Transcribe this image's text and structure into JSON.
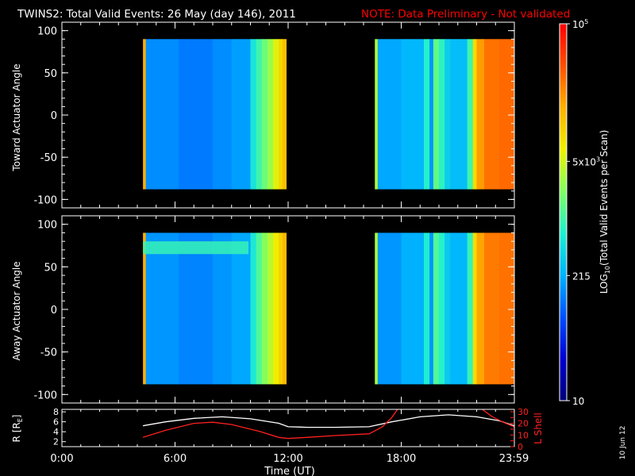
{
  "header": {
    "title": "TWINS2: Total Valid Events: 26 May (day 146), 2011",
    "note": "NOTE: Data Preliminary - Not validated"
  },
  "stamp": "10 Jun 12",
  "colors": {
    "background": "#000000",
    "axes": "#ffffff",
    "note": "#ff0000",
    "r_line": "#ffffff",
    "lshell_line": "#ff2020",
    "colormap": [
      "#000078",
      "#0000d0",
      "#0050ff",
      "#00b4ff",
      "#20f0d0",
      "#80ff60",
      "#f0f000",
      "#ffb000",
      "#ff5000",
      "#ff0000"
    ]
  },
  "chart_data": [
    {
      "type": "heatmap",
      "id": "toward",
      "ylabel": "Toward Actuator Angle",
      "ylim": [
        -110,
        110
      ],
      "yticks": [
        100,
        50,
        0,
        -50,
        -100
      ],
      "xlim": [
        0,
        24
      ],
      "data_angle_range": [
        -88,
        90
      ],
      "segments": [
        {
          "start_hr": 4.3,
          "end_hr": 11.9,
          "columns": [
            [
              4.3,
              4.45,
              0.78
            ],
            [
              4.45,
              6.2,
              0.29
            ],
            [
              6.2,
              8.0,
              0.27
            ],
            [
              8.0,
              9.0,
              0.29
            ],
            [
              9.0,
              10.0,
              0.31
            ],
            [
              10.0,
              10.3,
              0.42
            ],
            [
              10.3,
              10.6,
              0.48
            ],
            [
              10.6,
              10.9,
              0.53
            ],
            [
              10.9,
              11.2,
              0.58
            ],
            [
              11.2,
              11.5,
              0.65
            ],
            [
              11.5,
              11.7,
              0.71
            ],
            [
              11.7,
              11.9,
              0.75
            ]
          ]
        },
        {
          "start_hr": 16.6,
          "end_hr": 24.0,
          "columns": [
            [
              16.6,
              16.75,
              0.6
            ],
            [
              16.75,
              18.0,
              0.32
            ],
            [
              18.0,
              19.2,
              0.34
            ],
            [
              19.2,
              19.5,
              0.45
            ],
            [
              19.5,
              19.7,
              0.3
            ],
            [
              19.7,
              20.0,
              0.52
            ],
            [
              20.0,
              20.3,
              0.46
            ],
            [
              20.3,
              20.6,
              0.38
            ],
            [
              20.6,
              21.5,
              0.35
            ],
            [
              21.5,
              21.8,
              0.48
            ],
            [
              21.8,
              22.0,
              0.7
            ],
            [
              22.0,
              22.4,
              0.8
            ],
            [
              22.4,
              23.2,
              0.85
            ],
            [
              23.2,
              24.0,
              0.86
            ]
          ]
        }
      ]
    },
    {
      "type": "heatmap",
      "id": "away",
      "ylabel": "Away Actuator Angle",
      "ylim": [
        -110,
        110
      ],
      "yticks": [
        100,
        50,
        0,
        -50,
        -100
      ],
      "xlim": [
        0,
        24
      ],
      "data_angle_range": [
        -88,
        90
      ],
      "segments": [
        {
          "start_hr": 4.3,
          "end_hr": 11.9,
          "columns": [
            [
              4.3,
              4.45,
              0.78
            ],
            [
              4.45,
              6.2,
              0.3
            ],
            [
              6.2,
              8.0,
              0.28
            ],
            [
              8.0,
              9.0,
              0.3
            ],
            [
              9.0,
              10.0,
              0.32
            ],
            [
              10.0,
              10.3,
              0.43
            ],
            [
              10.3,
              10.6,
              0.5
            ],
            [
              10.6,
              10.9,
              0.56
            ],
            [
              10.9,
              11.2,
              0.61
            ],
            [
              11.2,
              11.5,
              0.67
            ],
            [
              11.5,
              11.7,
              0.72
            ],
            [
              11.7,
              11.9,
              0.76
            ]
          ]
        },
        {
          "start_hr": 16.6,
          "end_hr": 24.0,
          "columns": [
            [
              16.6,
              16.75,
              0.6
            ],
            [
              16.75,
              18.0,
              0.3
            ],
            [
              18.0,
              19.2,
              0.33
            ],
            [
              19.2,
              19.5,
              0.44
            ],
            [
              19.5,
              19.7,
              0.3
            ],
            [
              19.7,
              20.0,
              0.5
            ],
            [
              20.0,
              20.3,
              0.45
            ],
            [
              20.3,
              20.6,
              0.37
            ],
            [
              20.6,
              21.5,
              0.34
            ],
            [
              21.5,
              21.8,
              0.47
            ],
            [
              21.8,
              22.0,
              0.7
            ],
            [
              22.0,
              22.4,
              0.79
            ],
            [
              22.4,
              23.2,
              0.84
            ],
            [
              23.2,
              24.0,
              0.85
            ]
          ]
        }
      ],
      "band": {
        "angle_min": 65,
        "angle_max": 80,
        "start_hr": 4.3,
        "end_hr": 9.9,
        "value": 0.47
      }
    },
    {
      "type": "line",
      "id": "orbit",
      "xlabel": "Time (UT)",
      "ylabel": "R [R",
      "ylabel_sub": "E",
      "ylabel_close": "]",
      "ylabel_right": "L Shell",
      "xlim": [
        0,
        24
      ],
      "ylim": [
        1,
        8.5
      ],
      "yticks": [
        8,
        6,
        4,
        2
      ],
      "ylim_right": [
        0,
        32
      ],
      "yticks_right": [
        30,
        25,
        20,
        15,
        10,
        5,
        0
      ],
      "xtick_values": [
        0,
        6,
        12,
        18,
        23.98
      ],
      "xtick_labels": [
        "0:00",
        "6:00",
        "12:00",
        "18:00",
        "23:59"
      ],
      "series": [
        {
          "axis": "left",
          "x": [
            4.3,
            5.5,
            7.0,
            8.5,
            10.0,
            11.5,
            12.0,
            13.0,
            14.5,
            16.3,
            17.5,
            19.0,
            20.5,
            22.0,
            23.2,
            24.0
          ],
          "y": [
            5.2,
            6.0,
            6.7,
            7.0,
            6.6,
            5.7,
            5.0,
            4.9,
            4.9,
            5.0,
            6.0,
            7.0,
            7.4,
            7.0,
            6.2,
            5.2
          ]
        },
        {
          "axis": "right",
          "x": [
            4.3,
            5.5,
            7.0,
            8.0,
            9.0,
            10.5,
            11.5,
            12.0,
            13.0,
            14.5,
            16.3,
            17.0,
            17.5,
            17.8
          ],
          "y": [
            8.0,
            14.0,
            20.0,
            21.0,
            19.0,
            13.0,
            8.0,
            7.0,
            8.0,
            9.5,
            11.0,
            17.0,
            25.0,
            32.0
          ]
        },
        {
          "axis": "right",
          "x": [
            22.3,
            22.8,
            23.4,
            24.0
          ],
          "y": [
            32.0,
            26.0,
            21.0,
            17.0
          ]
        }
      ]
    },
    {
      "type": "colorbar",
      "id": "colorbar",
      "label": "LOG₁₀(Total Valid Events per Scan)",
      "label_parts": [
        "LOG",
        "10",
        "(Total Valid Events per Scan)"
      ],
      "tick_positions": [
        0.0,
        0.332,
        0.635,
        1.0
      ],
      "tick_labels": [
        "10",
        "215",
        "5x10^3",
        "10^5"
      ]
    }
  ]
}
